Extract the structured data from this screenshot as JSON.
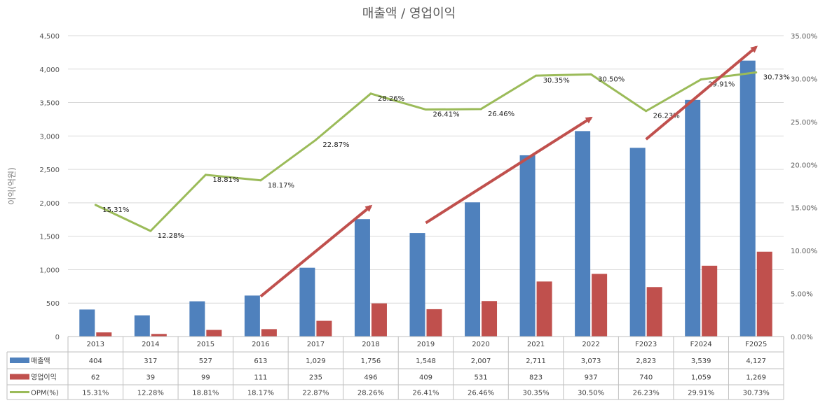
{
  "chart_data": {
    "type": "bar",
    "title": "매출액 / 영업이익",
    "ylabel": "이익(억원)",
    "categories": [
      "2013",
      "2014",
      "2015",
      "2016",
      "2017",
      "2018",
      "2019",
      "2020",
      "2021",
      "2022",
      "F2023",
      "F2024",
      "F2025"
    ],
    "ylim": [
      0,
      4500
    ],
    "yticks": [
      "0",
      "500",
      "1,000",
      "1,500",
      "2,000",
      "2,500",
      "3,000",
      "3,500",
      "4,000",
      "4,500"
    ],
    "y2lim": [
      0,
      35
    ],
    "y2ticks": [
      "0.00%",
      "5.00%",
      "10.00%",
      "15.00%",
      "20.00%",
      "25.00%",
      "30.00%",
      "35.00%"
    ],
    "grid": true,
    "series": [
      {
        "name": "매출액",
        "type": "bar",
        "color": "#4f81bd",
        "values": [
          404,
          317,
          527,
          613,
          1029,
          1756,
          1548,
          2007,
          2711,
          3073,
          2823,
          3539,
          4127
        ],
        "labels": [
          "404",
          "317",
          "527",
          "613",
          "1,029",
          "1,756",
          "1,548",
          "2,007",
          "2,711",
          "3,073",
          "2,823",
          "3,539",
          "4,127"
        ]
      },
      {
        "name": "영업이익",
        "type": "bar",
        "color": "#c0504d",
        "values": [
          62,
          39,
          99,
          111,
          235,
          496,
          409,
          531,
          823,
          937,
          740,
          1059,
          1269
        ],
        "labels": [
          "62",
          "39",
          "99",
          "111",
          "235",
          "496",
          "409",
          "531",
          "823",
          "937",
          "740",
          "1,059",
          "1,269"
        ]
      },
      {
        "name": "OPM(%)",
        "type": "line",
        "axis": "secondary",
        "color": "#9bbb59",
        "values": [
          15.31,
          12.28,
          18.81,
          18.17,
          22.87,
          28.26,
          26.41,
          26.46,
          30.35,
          30.5,
          26.23,
          29.91,
          30.73
        ],
        "labels": [
          "15.31%",
          "12.28%",
          "18.81%",
          "18.17%",
          "22.87%",
          "28.26%",
          "26.41%",
          "26.46%",
          "30.35%",
          "30.50%",
          "26.23%",
          "29.91%",
          "30.73%"
        ]
      }
    ],
    "annotations": [
      {
        "type": "arrow",
        "color": "#c0504d",
        "from": {
          "x": "2016",
          "y": 600
        },
        "to": {
          "x": "2018",
          "y": 1950
        }
      },
      {
        "type": "arrow",
        "color": "#c0504d",
        "from": {
          "x": "2019",
          "y": 1700
        },
        "to": {
          "x": "2022",
          "y": 3270
        }
      },
      {
        "type": "arrow",
        "color": "#c0504d",
        "from": {
          "x": "F2023",
          "y": 2950
        },
        "to": {
          "x": "F2025",
          "y": 4330
        }
      }
    ]
  }
}
